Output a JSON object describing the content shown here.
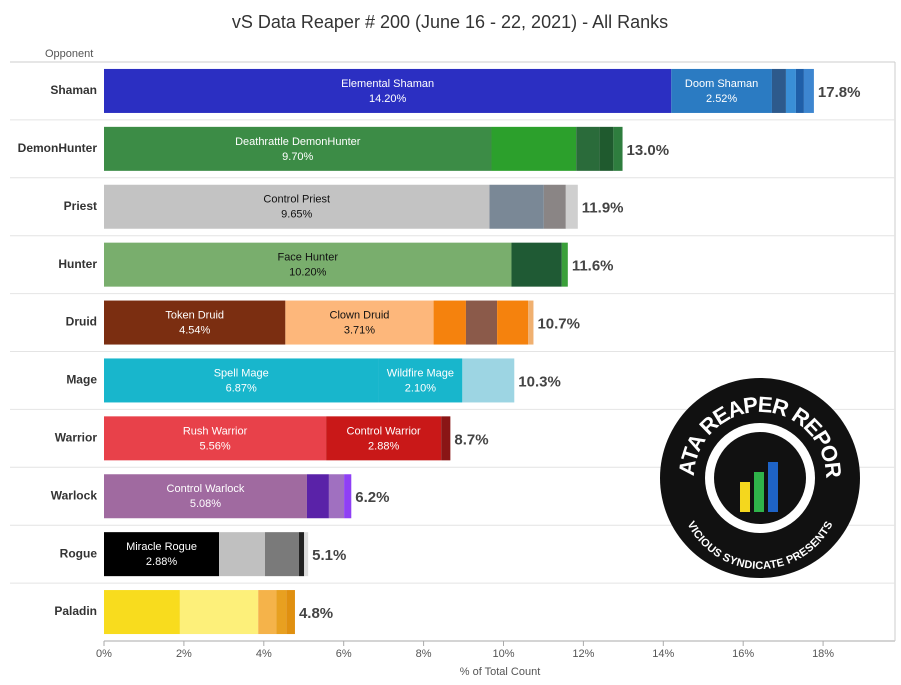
{
  "chart_data": {
    "type": "stacked_bar_horizontal",
    "title": "vS Data Reaper # 200 (June 16 - 22, 2021) - All Ranks",
    "y_axis_label": "Opponent",
    "x_axis_label": "% of Total Count",
    "xlim": [
      0,
      19.8
    ],
    "xticks": [
      {
        "value": 0,
        "label": "0%"
      },
      {
        "value": 2,
        "label": "2%"
      },
      {
        "value": 4,
        "label": "4%"
      },
      {
        "value": 6,
        "label": "6%"
      },
      {
        "value": 8,
        "label": "8%"
      },
      {
        "value": 10,
        "label": "10%"
      },
      {
        "value": 12,
        "label": "12%"
      },
      {
        "value": 14,
        "label": "14%"
      },
      {
        "value": 16,
        "label": "16%"
      },
      {
        "value": 18,
        "label": "18%"
      }
    ],
    "grid": false,
    "rows": [
      {
        "category": "Shaman",
        "total": 17.8,
        "total_label": "17.8%",
        "segments": [
          {
            "name": "Elemental Shaman",
            "value": 14.2,
            "value_label": "14.20%",
            "color": "#2b2fc2"
          },
          {
            "name": "Doom Shaman",
            "value": 2.52,
            "value_label": "2.52%",
            "color": "#2b7bc2"
          },
          {
            "value": 0.35,
            "color": "#2d5a8c"
          },
          {
            "value": 0.25,
            "color": "#3a8fd6"
          },
          {
            "value": 0.2,
            "color": "#1f5fa8"
          },
          {
            "value": 0.25,
            "color": "#3d86d0"
          }
        ]
      },
      {
        "category": "DemonHunter",
        "total": 13.0,
        "total_label": "13.0%",
        "segments": [
          {
            "name": "Deathrattle DemonHunter",
            "value": 9.7,
            "value_label": "9.70%",
            "color": "#3c8c46"
          },
          {
            "value": 2.12,
            "color": "#2ca02c"
          },
          {
            "value": 0.58,
            "color": "#2a6b3a"
          },
          {
            "value": 0.35,
            "color": "#1f5a2e"
          },
          {
            "value": 0.23,
            "color": "#2e7d3e"
          }
        ]
      },
      {
        "category": "Priest",
        "total": 11.9,
        "total_label": "11.9%",
        "segments": [
          {
            "name": "Control Priest",
            "value": 9.65,
            "value_label": "9.65%",
            "color": "#c3c3c3"
          },
          {
            "value": 1.36,
            "color": "#7a8896"
          },
          {
            "value": 0.55,
            "color": "#8a8585"
          },
          {
            "value": 0.3,
            "color": "#cfcfcf"
          }
        ]
      },
      {
        "category": "Hunter",
        "total": 11.6,
        "total_label": "11.6%",
        "segments": [
          {
            "name": "Face Hunter",
            "value": 10.2,
            "value_label": "10.20%",
            "color": "#79ae6d"
          },
          {
            "value": 1.26,
            "color": "#1f5a34"
          },
          {
            "value": 0.15,
            "color": "#3aa03a"
          }
        ]
      },
      {
        "category": "Druid",
        "total": 10.7,
        "total_label": "10.7%",
        "segments": [
          {
            "name": "Token Druid",
            "value": 4.54,
            "value_label": "4.54%",
            "color": "#7b2e11"
          },
          {
            "name": "Clown Druid",
            "value": 3.71,
            "value_label": "3.71%",
            "color": "#fdb77b"
          },
          {
            "value": 0.81,
            "color": "#f5820d"
          },
          {
            "value": 0.78,
            "color": "#8b5a4a"
          },
          {
            "value": 0.78,
            "color": "#f5820d"
          },
          {
            "value": 0.13,
            "color": "#f0b070"
          }
        ]
      },
      {
        "category": "Mage",
        "total": 10.3,
        "total_label": "10.3%",
        "segments": [
          {
            "name": "Spell Mage",
            "value": 6.87,
            "value_label": "6.87%",
            "color": "#18b6cc"
          },
          {
            "name": "Wildfire Mage",
            "value": 2.1,
            "value_label": "2.10%",
            "color": "#18b6cc"
          },
          {
            "value": 1.3,
            "color": "#9dd5e3"
          }
        ]
      },
      {
        "category": "Warrior",
        "total": 8.7,
        "total_label": "8.7%",
        "segments": [
          {
            "name": "Rush Warrior",
            "value": 5.56,
            "value_label": "5.56%",
            "color": "#e8414a"
          },
          {
            "name": "Control Warrior",
            "value": 2.88,
            "value_label": "2.88%",
            "color": "#c91818"
          },
          {
            "value": 0.23,
            "color": "#8a1515"
          }
        ]
      },
      {
        "category": "Warlock",
        "total": 6.2,
        "total_label": "6.2%",
        "segments": [
          {
            "name": "Control Warlock",
            "value": 5.08,
            "value_label": "5.08%",
            "color": "#a06aa0"
          },
          {
            "value": 0.55,
            "color": "#5a22a8"
          },
          {
            "value": 0.38,
            "color": "#a070c0"
          },
          {
            "value": 0.18,
            "color": "#8f3ff5"
          }
        ]
      },
      {
        "category": "Rogue",
        "total": 5.1,
        "total_label": "5.1%",
        "segments": [
          {
            "name": "Miracle Rogue",
            "value": 2.88,
            "value_label": "2.88%",
            "color": "#000000"
          },
          {
            "value": 1.15,
            "color": "#c0c0c0"
          },
          {
            "value": 0.85,
            "color": "#7a7a7a"
          },
          {
            "value": 0.13,
            "color": "#222222"
          },
          {
            "value": 0.1,
            "color": "#dddddd"
          }
        ]
      },
      {
        "category": "Paladin",
        "total": 4.8,
        "total_label": "4.8%",
        "segments": [
          {
            "value": 1.9,
            "color": "#f8dc1e"
          },
          {
            "value": 1.96,
            "color": "#fdf07a"
          },
          {
            "value": 0.45,
            "color": "#f5b34a"
          },
          {
            "value": 0.25,
            "color": "#e8a020"
          },
          {
            "value": 0.22,
            "color": "#e09010"
          }
        ]
      }
    ]
  },
  "logo": {
    "title": "DATA REAPER REPORT",
    "subtitle": "VICIOUS SYNDICATE PRESENTS"
  }
}
